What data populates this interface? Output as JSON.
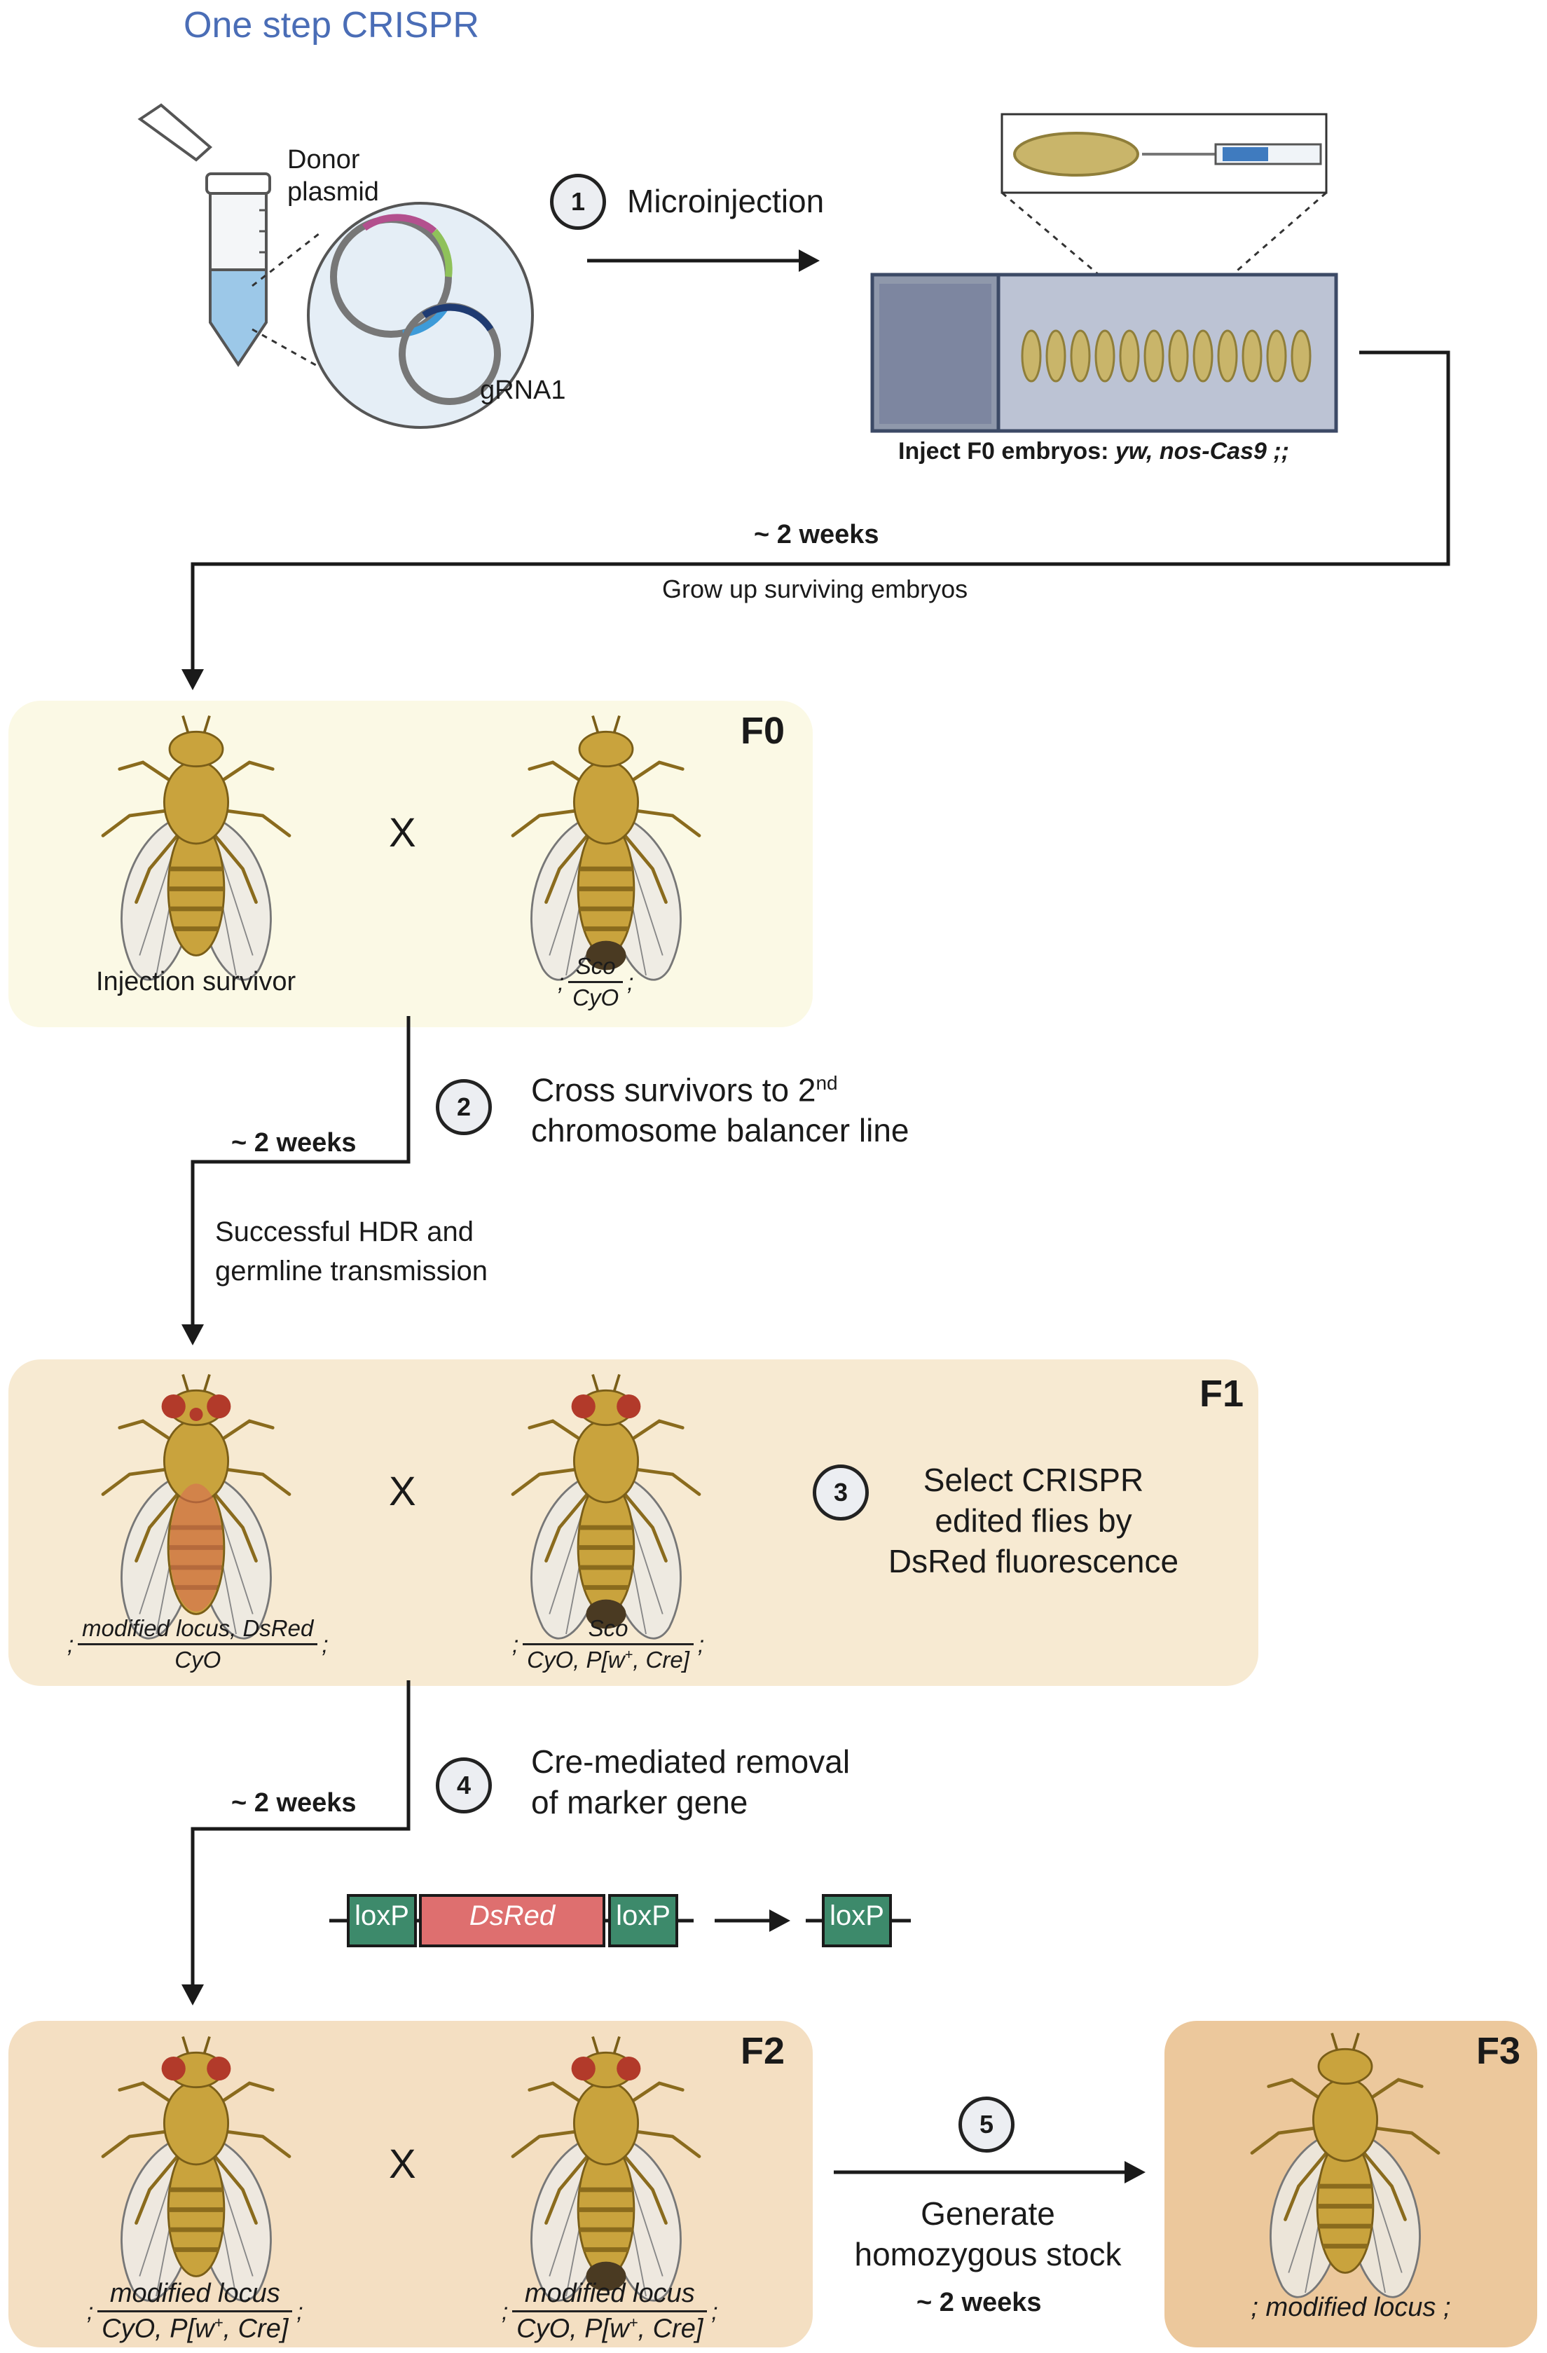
{
  "title": "One step CRISPR",
  "materials": {
    "donor_label_1": "Donor",
    "donor_label_2": "plasmid",
    "grna_label": "gRNA1"
  },
  "steps": [
    {
      "number": "1",
      "text": "Microinjection"
    },
    {
      "number": "2",
      "text_line1": "Cross survivors to 2",
      "superscript": "nd",
      "text_line2": "chromosome balancer line"
    },
    {
      "number": "3",
      "text_line1": "Select CRISPR",
      "text_line2": "edited flies by",
      "text_line3": "DsRed fluorescence"
    },
    {
      "number": "4",
      "text_line1": "Cre-mediated removal",
      "text_line2": "of marker gene"
    },
    {
      "number": "5",
      "text_line1": "Generate",
      "text_line2": "homozygous stock"
    }
  ],
  "injection": {
    "caption_prefix": "Inject F0 embryos: ",
    "caption_genotype": "yw, nos-Cas9 ;;"
  },
  "timeline": {
    "two_weeks": "~ 2 weeks",
    "grow_up": "Grow up surviving embryos",
    "hdr_line1": "Successful HDR and",
    "hdr_line2": "germline transmission"
  },
  "generations": {
    "f0": {
      "label": "F0",
      "left_caption": "Injection survivor",
      "cross": "X",
      "right_genotype": {
        "pre": ";",
        "num": "Sco",
        "den": "CyO",
        "post": ";"
      }
    },
    "f1": {
      "label": "F1",
      "cross": "X",
      "left_genotype": {
        "pre": ";",
        "num": "modified locus, DsRed",
        "den": "CyO",
        "post": ";"
      },
      "right_genotype": {
        "pre": ";",
        "num": "Sco",
        "den_a": "CyO, P[w",
        "den_sup": "+",
        "den_b": ", Cre]",
        "post": ";"
      }
    },
    "f2": {
      "label": "F2",
      "cross": "X",
      "left_genotype": {
        "pre": ";",
        "num": "modified locus",
        "den_a": "CyO, P[w",
        "den_sup": "+",
        "den_b": ", Cre]",
        "post": ";"
      },
      "right_genotype": {
        "pre": ";",
        "num": "modified locus",
        "den_a": "CyO, P[w",
        "den_sup": "+",
        "den_b": ", Cre]",
        "post": ";"
      }
    },
    "f3": {
      "label": "F3",
      "genotype": "; modified locus ;"
    }
  },
  "construct": {
    "loxp": "loxP",
    "marker": "DsRed"
  },
  "colors": {
    "title_blue": "#4a6db6",
    "f0_panel": "#fbf9e5",
    "f1_panel": "#f7ead2",
    "f2_panel": "#f4dfc2",
    "f3_panel": "#ecc89c",
    "loxp_green": "#3d8a6b",
    "dsred_red": "#de6f6f",
    "fly_body": "#c9a33d",
    "red_eye": "#b23a2a"
  },
  "icons": [
    "tube-icon",
    "plasmid-icon",
    "embryo-icon",
    "needle-icon",
    "slide-icon",
    "fly-icon",
    "arrow-icon"
  ]
}
